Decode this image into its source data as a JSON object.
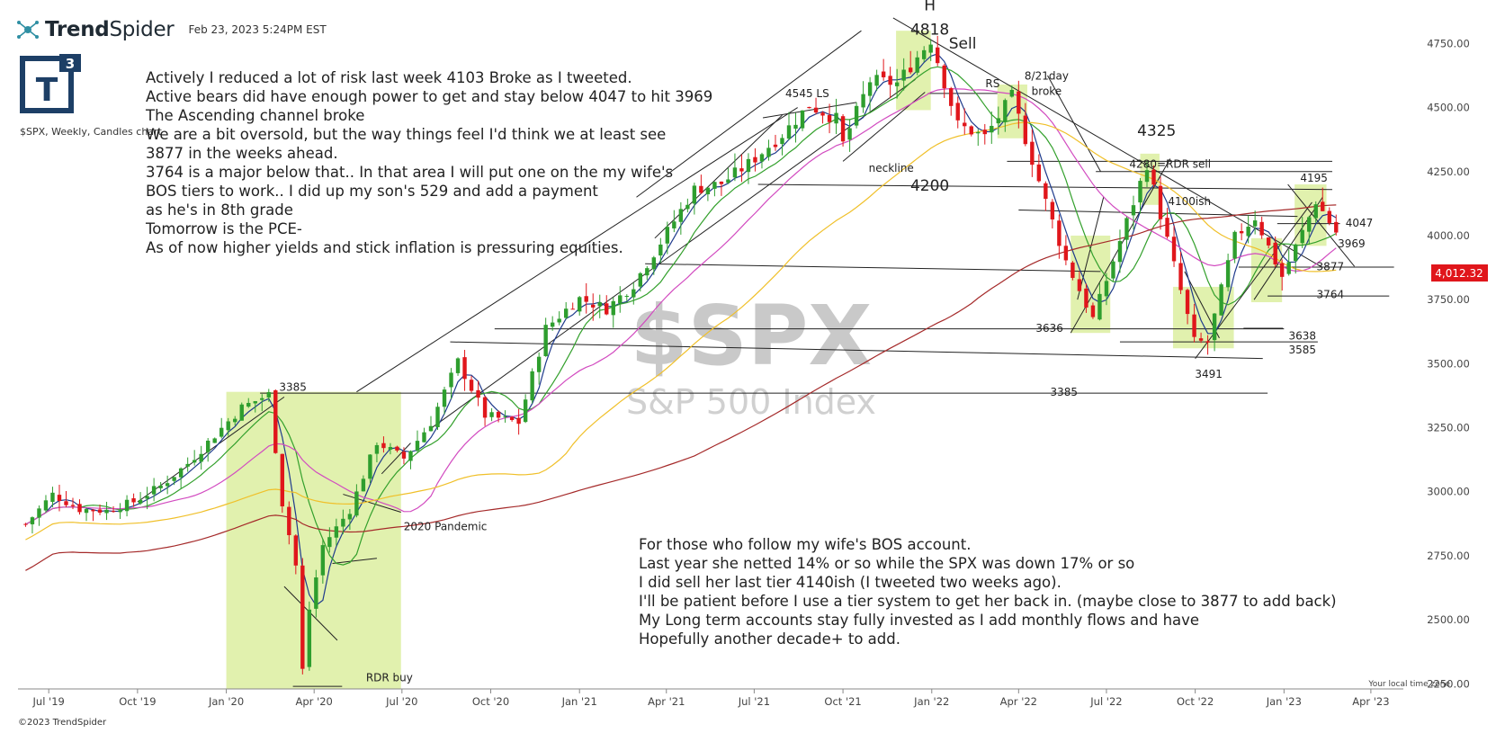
{
  "header": {
    "brand_name": "TrendSpider",
    "timestamp": "Feb 23, 2023 5:24PM EST",
    "logo_text": "T",
    "logo_superscript": "3",
    "symbol_desc": "$SPX, Weekly, Candles chart",
    "copyright": "©2023 TrendSpider"
  },
  "notes": {
    "left": [
      "Actively I reduced a lot of risk last week 4103 Broke as I tweeted.",
      "Active bears did have enough power to get and stay below 4047 to hit 3969",
      "The Ascending channel broke",
      "We are a bit oversold, but the way things feel I'd think we at least see",
      "3877 in the weeks ahead.",
      "3764 is a major below that.. In that area I will put one on the my wife's",
      "BOS tiers to work.. I did up my son's 529 and add a payment",
      "as he's in 8th grade",
      "Tomorrow is the PCE-",
      "As of now higher yields and stick inflation is pressuring equities."
    ],
    "right": [
      "For those who follow my wife's BOS account.",
      "Last year she netted 14% or so while the SPX was down 17% or so",
      "I did sell her last tier 4140ish (I tweeted two weeks ago).",
      "I'll be patient before I use a tier system to get her back in. (maybe close to 3877 to add back)",
      "My Long term accounts stay fully invested as I add monthly flows and have",
      "Hopefully another decade+ to add."
    ]
  },
  "colors": {
    "up": "#2e9e2e",
    "down": "#e0161b",
    "ma_fast": "#1f3b8c",
    "ma_mid": "#33a02c",
    "ma_pink": "#d24bc0",
    "ma_yellow": "#f0c02a",
    "ma_dark_red": "#a52a2a",
    "highlight": "#dcefa0",
    "price_badge": "#e0161b"
  },
  "chart_data": {
    "type": "candlestick",
    "symbol": "$SPX",
    "name": "S&P 500 Index",
    "timeframe": "Weekly",
    "last_price": "4,012.32",
    "y_ticks": [
      2250,
      2500,
      2750,
      3000,
      3250,
      3500,
      3750,
      4000,
      4250,
      4500,
      4750
    ],
    "y_tick_labels": [
      "2250.00",
      "2500.00",
      "2750.00",
      "3000.00",
      "3250.00",
      "3500.00",
      "3750.00",
      "4000.00",
      "4250.00",
      "4500.00",
      "4750.00"
    ],
    "ylim": [
      2230,
      4920
    ],
    "x_range": [
      "2019-06-01",
      "2023-04-30"
    ],
    "x_ticks": [
      {
        "label": "Jul '19",
        "date": "2019-07-01"
      },
      {
        "label": "Oct '19",
        "date": "2019-10-01"
      },
      {
        "label": "Jan '20",
        "date": "2020-01-01"
      },
      {
        "label": "Apr '20",
        "date": "2020-04-01"
      },
      {
        "label": "Jul '20",
        "date": "2020-07-01"
      },
      {
        "label": "Oct '20",
        "date": "2020-10-01"
      },
      {
        "label": "Jan '21",
        "date": "2021-01-01"
      },
      {
        "label": "Apr '21",
        "date": "2021-04-01"
      },
      {
        "label": "Jul '21",
        "date": "2021-07-01"
      },
      {
        "label": "Oct '21",
        "date": "2021-10-01"
      },
      {
        "label": "Jan '22",
        "date": "2022-01-01"
      },
      {
        "label": "Apr '22",
        "date": "2022-04-01"
      },
      {
        "label": "Jul '22",
        "date": "2022-07-01"
      },
      {
        "label": "Oct '22",
        "date": "2022-10-01"
      },
      {
        "label": "Jan '23",
        "date": "2023-01-01"
      },
      {
        "label": "Apr '23",
        "date": "2023-04-01"
      }
    ],
    "local_time_zone_label": "Your local time zone",
    "closes": [
      {
        "date": "2019-06-07",
        "close": 2873
      },
      {
        "date": "2019-07-05",
        "close": 2990
      },
      {
        "date": "2019-08-02",
        "close": 2932
      },
      {
        "date": "2019-08-30",
        "close": 2926
      },
      {
        "date": "2019-09-27",
        "close": 2961
      },
      {
        "date": "2019-10-25",
        "close": 3022
      },
      {
        "date": "2019-11-22",
        "close": 3110
      },
      {
        "date": "2019-12-20",
        "close": 3221
      },
      {
        "date": "2020-01-17",
        "close": 3329
      },
      {
        "date": "2020-02-14",
        "close": 3380
      },
      {
        "date": "2020-02-28",
        "close": 2954
      },
      {
        "date": "2020-03-13",
        "close": 2711
      },
      {
        "date": "2020-03-20",
        "close": 2304
      },
      {
        "date": "2020-03-27",
        "close": 2541
      },
      {
        "date": "2020-04-10",
        "close": 2790
      },
      {
        "date": "2020-05-08",
        "close": 2929
      },
      {
        "date": "2020-06-05",
        "close": 3194
      },
      {
        "date": "2020-07-03",
        "close": 3130
      },
      {
        "date": "2020-07-31",
        "close": 3271
      },
      {
        "date": "2020-08-28",
        "close": 3508
      },
      {
        "date": "2020-09-25",
        "close": 3298
      },
      {
        "date": "2020-10-30",
        "close": 3270
      },
      {
        "date": "2020-11-27",
        "close": 3638
      },
      {
        "date": "2020-12-31",
        "close": 3756
      },
      {
        "date": "2021-01-29",
        "close": 3714
      },
      {
        "date": "2021-02-26",
        "close": 3811
      },
      {
        "date": "2021-03-26",
        "close": 3974
      },
      {
        "date": "2021-04-30",
        "close": 4181
      },
      {
        "date": "2021-05-28",
        "close": 4204
      },
      {
        "date": "2021-06-25",
        "close": 4280
      },
      {
        "date": "2021-07-30",
        "close": 4395
      },
      {
        "date": "2021-08-27",
        "close": 4509
      },
      {
        "date": "2021-09-24",
        "close": 4455
      },
      {
        "date": "2021-10-01",
        "close": 4357
      },
      {
        "date": "2021-10-29",
        "close": 4605
      },
      {
        "date": "2021-11-26",
        "close": 4595
      },
      {
        "date": "2021-12-31",
        "close": 4766
      },
      {
        "date": "2022-01-28",
        "close": 4432
      },
      {
        "date": "2022-02-25",
        "close": 4385
      },
      {
        "date": "2022-03-25",
        "close": 4543
      },
      {
        "date": "2022-04-29",
        "close": 4132
      },
      {
        "date": "2022-05-20",
        "close": 3901
      },
      {
        "date": "2022-06-17",
        "close": 3675
      },
      {
        "date": "2022-07-29",
        "close": 4130
      },
      {
        "date": "2022-08-12",
        "close": 4280
      },
      {
        "date": "2022-09-30",
        "close": 3586
      },
      {
        "date": "2022-10-14",
        "close": 3583
      },
      {
        "date": "2022-11-11",
        "close": 3993
      },
      {
        "date": "2022-12-02",
        "close": 4072
      },
      {
        "date": "2022-12-30",
        "close": 3840
      },
      {
        "date": "2023-01-27",
        "close": 4071
      },
      {
        "date": "2023-02-03",
        "close": 4136
      },
      {
        "date": "2023-02-24",
        "close": 4012
      }
    ],
    "level_labels": [
      {
        "text": "H"
      },
      {
        "text": "4818"
      },
      {
        "text": "Sell"
      },
      {
        "text": "4545  LS"
      },
      {
        "text": "RS"
      },
      {
        "text": "8/21day"
      },
      {
        "text": "broke"
      },
      {
        "text": "neckline"
      },
      {
        "text": "4200"
      },
      {
        "text": "4325"
      },
      {
        "text": "4280=RDR sell"
      },
      {
        "text": "4100ish"
      },
      {
        "text": "4195"
      },
      {
        "text": "4047"
      },
      {
        "text": "3969"
      },
      {
        "text": "3877"
      },
      {
        "text": "3764"
      },
      {
        "text": "3636"
      },
      {
        "text": "3638"
      },
      {
        "text": "3585"
      },
      {
        "text": "3491"
      },
      {
        "text": "3385"
      },
      {
        "text": "3385"
      },
      {
        "text": "2020 Pandemic"
      },
      {
        "text": "RDR buy"
      }
    ]
  }
}
